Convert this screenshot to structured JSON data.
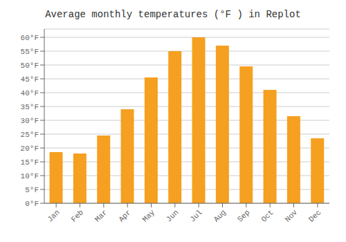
{
  "chart_data": {
    "type": "bar",
    "title": "Average monthly temperatures (°F ) in Replot",
    "categories": [
      "Jan",
      "Feb",
      "Mar",
      "Apr",
      "May",
      "Jun",
      "Jul",
      "Aug",
      "Sep",
      "Oct",
      "Nov",
      "Dec"
    ],
    "values": [
      18.5,
      18.0,
      24.5,
      34.0,
      45.5,
      55.0,
      60.0,
      57.0,
      49.5,
      41.0,
      31.5,
      23.5
    ],
    "color": "#F5A020",
    "ylim": [
      0,
      63
    ],
    "yticks": [
      {
        "value": 0,
        "label": "0°F"
      },
      {
        "value": 5,
        "label": "5°F"
      },
      {
        "value": 10,
        "label": "10°F"
      },
      {
        "value": 15,
        "label": "15°F"
      },
      {
        "value": 20,
        "label": "20°F"
      },
      {
        "value": 25,
        "label": "25°F"
      },
      {
        "value": 30,
        "label": "30°F"
      },
      {
        "value": 35,
        "label": "35°F"
      },
      {
        "value": 40,
        "label": "40°F"
      },
      {
        "value": 45,
        "label": "45°F"
      },
      {
        "value": 50,
        "label": "50°F"
      },
      {
        "value": 55,
        "label": "55°F"
      },
      {
        "value": 60,
        "label": "60°F"
      }
    ],
    "grid": true
  }
}
